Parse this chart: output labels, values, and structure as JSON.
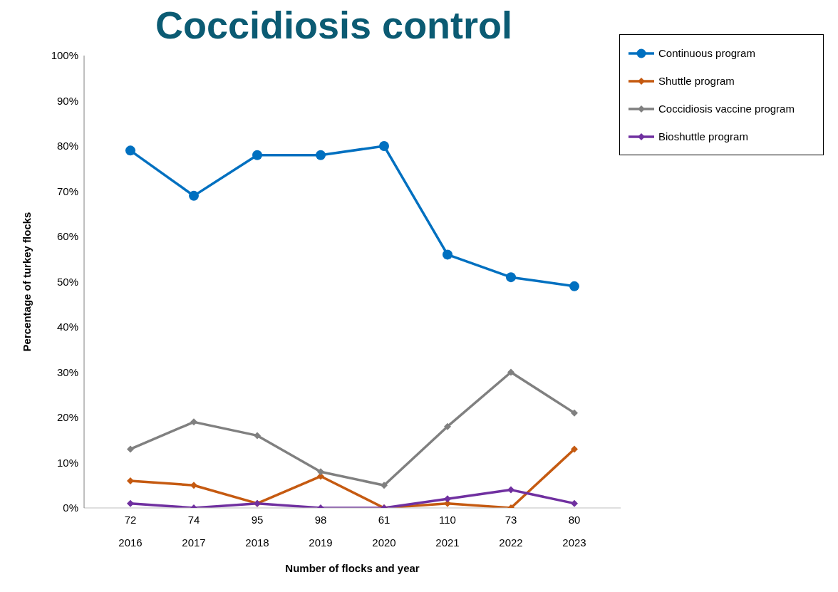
{
  "chart_data": {
    "type": "line",
    "title": "Coccidiosis control",
    "xlabel": "Number of flocks and year",
    "ylabel": "Percentage of turkey flocks",
    "categories": [
      "72\n2016",
      "74\n2017",
      "95\n2018",
      "98\n2019",
      "61\n2020",
      "110\n2021",
      "73\n2022",
      "80\n2023"
    ],
    "series": [
      {
        "name": "Continuous program",
        "color": "#0070c0",
        "marker": "circle",
        "values": [
          79,
          69,
          78,
          78,
          80,
          56,
          51,
          49
        ]
      },
      {
        "name": "Shuttle program",
        "color": "#c55a11",
        "marker": "diamond",
        "values": [
          6,
          5,
          1,
          7,
          0,
          1,
          0,
          13
        ]
      },
      {
        "name": "Coccidiosis vaccine program",
        "color": "#808080",
        "marker": "diamond",
        "values": [
          13,
          19,
          16,
          8,
          5,
          18,
          30,
          21
        ]
      },
      {
        "name": "Bioshuttle program",
        "color": "#7030a0",
        "marker": "diamond",
        "values": [
          1,
          0,
          1,
          0,
          0,
          2,
          4,
          1
        ]
      }
    ],
    "ylim": [
      0,
      100
    ],
    "yticks": [
      {
        "value": 0,
        "label": "0%"
      },
      {
        "value": 10,
        "label": "10%"
      },
      {
        "value": 20,
        "label": "20%"
      },
      {
        "value": 30,
        "label": "30%"
      },
      {
        "value": 40,
        "label": "40%"
      },
      {
        "value": 50,
        "label": "50%"
      },
      {
        "value": 60,
        "label": "60%"
      },
      {
        "value": 70,
        "label": "70%"
      },
      {
        "value": 80,
        "label": "80%"
      },
      {
        "value": 90,
        "label": "90%"
      },
      {
        "value": 100,
        "label": "100%"
      }
    ],
    "legend": "top right",
    "grid": false,
    "line_style": "solid"
  }
}
